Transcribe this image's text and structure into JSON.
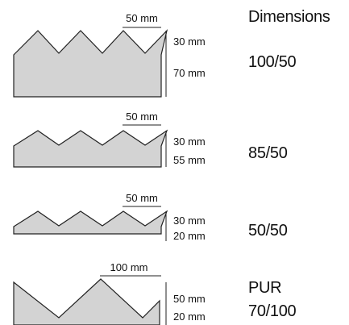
{
  "heading": "Dimensions",
  "colors": {
    "profile_fill": "#d3d3d3",
    "outline": "#222222",
    "text": "#111111"
  },
  "profiles": [
    {
      "label": "100/50",
      "pitch": "50 mm",
      "peak_height": "30 mm",
      "base_height": "70 mm"
    },
    {
      "label": "85/50",
      "pitch": "50 mm",
      "peak_height": "30 mm",
      "base_height": "55 mm"
    },
    {
      "label": "50/50",
      "pitch": "50 mm",
      "peak_height": "30 mm",
      "base_height": "20 mm"
    },
    {
      "label_line1": "PUR",
      "label_line2": "70/100",
      "pitch": "100 mm",
      "peak_height": "50 mm",
      "base_height": "20 mm"
    }
  ]
}
